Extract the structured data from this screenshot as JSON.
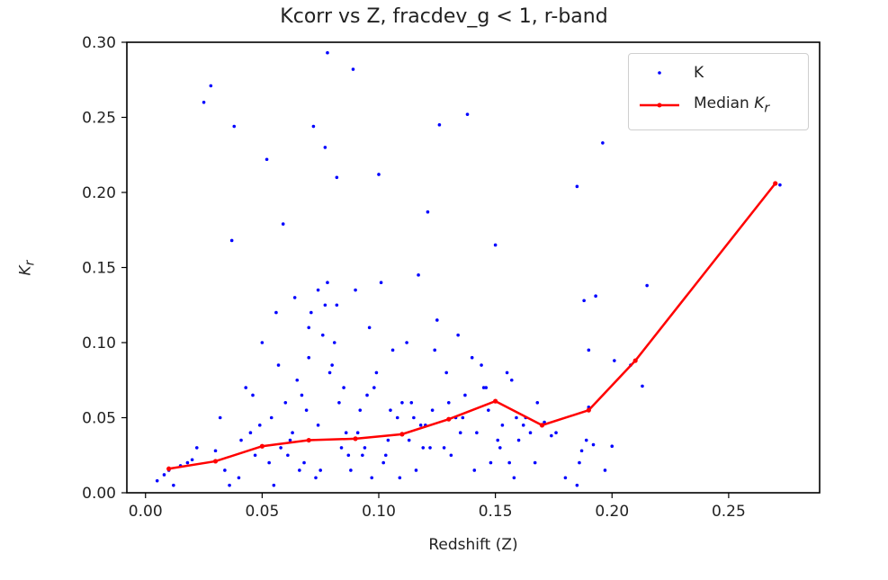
{
  "chart_data": {
    "type": "scatter",
    "title": "Kcorr vs Z, fracdev_g < 1, r-band",
    "xlabel": "Redshift (Z)",
    "ylabel_base": "K",
    "ylabel_sub": "r",
    "xlim": [
      -0.008,
      0.289
    ],
    "ylim": [
      0.0,
      0.3
    ],
    "xticks": [
      "0.00",
      "0.05",
      "0.10",
      "0.15",
      "0.20",
      "0.25"
    ],
    "yticks": [
      "0.00",
      "0.05",
      "0.10",
      "0.15",
      "0.20",
      "0.25",
      "0.30"
    ],
    "grid": false,
    "legend_position": "top-right",
    "colors": {
      "scatter": "#0000ff",
      "median": "#ff0000"
    },
    "series": [
      {
        "name": "K",
        "kind": "points",
        "x": [
          0.025,
          0.028,
          0.038,
          0.052,
          0.078,
          0.089,
          0.072,
          0.077,
          0.082,
          0.1,
          0.059,
          0.126,
          0.138,
          0.121,
          0.037,
          0.15,
          0.185,
          0.196,
          0.215,
          0.188,
          0.193,
          0.201,
          0.208,
          0.213,
          0.19,
          0.189,
          0.187,
          0.272,
          0.176,
          0.162,
          0.159,
          0.174,
          0.168,
          0.171,
          0.19,
          0.186,
          0.18,
          0.197,
          0.185,
          0.192,
          0.2,
          0.01,
          0.015,
          0.02,
          0.045,
          0.06,
          0.065,
          0.07,
          0.071,
          0.076,
          0.08,
          0.085,
          0.095,
          0.105,
          0.115,
          0.12,
          0.13,
          0.145,
          0.155,
          0.165,
          0.005,
          0.008,
          0.012,
          0.018,
          0.022,
          0.03,
          0.034,
          0.041,
          0.047,
          0.054,
          0.058,
          0.063,
          0.068,
          0.074,
          0.083,
          0.087,
          0.091,
          0.094,
          0.098,
          0.102,
          0.108,
          0.113,
          0.118,
          0.123,
          0.128,
          0.133,
          0.137,
          0.142,
          0.147,
          0.152,
          0.157,
          0.16,
          0.163,
          0.167,
          0.04,
          0.046,
          0.055,
          0.061,
          0.066,
          0.069,
          0.073,
          0.079,
          0.084,
          0.088,
          0.092,
          0.097,
          0.103,
          0.11,
          0.116,
          0.122,
          0.129,
          0.135,
          0.14,
          0.148,
          0.153,
          0.158,
          0.032,
          0.036,
          0.043,
          0.049,
          0.053,
          0.057,
          0.062,
          0.067,
          0.075,
          0.081,
          0.086,
          0.093,
          0.099,
          0.104,
          0.109,
          0.114,
          0.119,
          0.124,
          0.131,
          0.136,
          0.141,
          0.146,
          0.151,
          0.156,
          0.05,
          0.064,
          0.074,
          0.078,
          0.082,
          0.096,
          0.106,
          0.112,
          0.125,
          0.134,
          0.144,
          0.056,
          0.07,
          0.077,
          0.09,
          0.101,
          0.117
        ],
        "y": [
          0.26,
          0.271,
          0.244,
          0.222,
          0.293,
          0.282,
          0.244,
          0.23,
          0.21,
          0.212,
          0.179,
          0.245,
          0.252,
          0.187,
          0.168,
          0.165,
          0.204,
          0.233,
          0.138,
          0.128,
          0.131,
          0.088,
          0.085,
          0.071,
          0.095,
          0.035,
          0.028,
          0.205,
          0.04,
          0.045,
          0.05,
          0.038,
          0.06,
          0.047,
          0.057,
          0.02,
          0.01,
          0.015,
          0.005,
          0.032,
          0.031,
          0.015,
          0.018,
          0.022,
          0.04,
          0.06,
          0.075,
          0.09,
          0.12,
          0.105,
          0.085,
          0.07,
          0.065,
          0.055,
          0.05,
          0.045,
          0.06,
          0.07,
          0.08,
          0.04,
          0.008,
          0.012,
          0.005,
          0.02,
          0.03,
          0.028,
          0.015,
          0.035,
          0.025,
          0.05,
          0.03,
          0.04,
          0.02,
          0.045,
          0.06,
          0.025,
          0.04,
          0.03,
          0.07,
          0.02,
          0.05,
          0.035,
          0.045,
          0.055,
          0.03,
          0.05,
          0.065,
          0.04,
          0.055,
          0.03,
          0.075,
          0.035,
          0.05,
          0.02,
          0.01,
          0.065,
          0.005,
          0.025,
          0.015,
          0.055,
          0.01,
          0.08,
          0.03,
          0.015,
          0.055,
          0.01,
          0.025,
          0.06,
          0.015,
          0.03,
          0.08,
          0.04,
          0.09,
          0.02,
          0.045,
          0.01,
          0.05,
          0.005,
          0.07,
          0.045,
          0.02,
          0.085,
          0.035,
          0.065,
          0.015,
          0.1,
          0.04,
          0.025,
          0.08,
          0.035,
          0.01,
          0.06,
          0.03,
          0.095,
          0.025,
          0.05,
          0.015,
          0.07,
          0.035,
          0.02,
          0.1,
          0.13,
          0.135,
          0.14,
          0.125,
          0.11,
          0.095,
          0.1,
          0.115,
          0.105,
          0.085,
          0.12,
          0.11,
          0.125,
          0.135,
          0.14,
          0.145
        ]
      },
      {
        "name": "Median",
        "kind": "line",
        "x": [
          0.01,
          0.03,
          0.05,
          0.07,
          0.09,
          0.11,
          0.13,
          0.15,
          0.17,
          0.19,
          0.21,
          0.27
        ],
        "y": [
          0.016,
          0.021,
          0.031,
          0.035,
          0.036,
          0.039,
          0.049,
          0.061,
          0.045,
          0.055,
          0.088,
          0.206
        ]
      }
    ]
  }
}
